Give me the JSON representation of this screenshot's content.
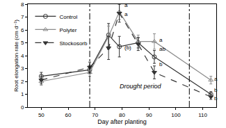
{
  "chart_data": {
    "type": "line",
    "x_label": "Day after planting",
    "y_label": "Root elongation rate (cm d⁻¹)",
    "xlim": [
      45,
      115
    ],
    "xticks": [
      50,
      60,
      70,
      80,
      90,
      100,
      110
    ],
    "ylim": [
      0,
      8
    ],
    "yticks": [
      0,
      1,
      2,
      3,
      4,
      5,
      6,
      7,
      8
    ],
    "grid": false,
    "legend": "upper left",
    "x": [
      50,
      68,
      75,
      79,
      86,
      92,
      113
    ],
    "series": [
      {
        "name": "Control",
        "color": "#333333",
        "marker": "circle-open",
        "line_style": "solid",
        "values": [
          2.4,
          2.9,
          5.6,
          4.7,
          5.0,
          3.9,
          1.0
        ],
        "error": [
          0.3,
          0.3,
          0.9,
          0.8,
          0.4,
          0.5,
          0.2
        ]
      },
      {
        "name": "Polyter",
        "color": "#8c8c8c",
        "marker": "triangle-up-open",
        "line_style": "solid",
        "values": [
          2.0,
          2.7,
          5.5,
          7.4,
          5.1,
          5.1,
          2.1
        ],
        "error": [
          0.3,
          0.3,
          0.8,
          0.6,
          0.5,
          0.6,
          0.3
        ]
      },
      {
        "name": "Stockosorb",
        "color": "#333333",
        "marker": "triangle-down",
        "line_style": "dash",
        "values": [
          2.1,
          3.1,
          4.6,
          7.3,
          4.9,
          2.7,
          0.8
        ],
        "error": [
          0.3,
          0.4,
          0.9,
          0.7,
          0.5,
          0.5,
          0.2
        ]
      }
    ],
    "vlines": [
      68,
      105
    ],
    "annotations": [
      {
        "text": "Drought period",
        "x": 87,
        "y": 1.6
      },
      {
        "text": "a",
        "x": 80.3,
        "y": 7.9
      },
      {
        "text": "a",
        "x": 80.3,
        "y": 7.2
      },
      {
        "text": "(b)",
        "x": 80.3,
        "y": 4.6
      },
      {
        "text": "a",
        "x": 93.3,
        "y": 5.2
      },
      {
        "text": "ab",
        "x": 93.3,
        "y": 4.5
      },
      {
        "text": "b",
        "x": 93.3,
        "y": 3.3
      },
      {
        "text": "a",
        "x": 113.6,
        "y": 2.2
      },
      {
        "text": "b",
        "x": 113.6,
        "y": 1.3
      },
      {
        "text": "b",
        "x": 113.6,
        "y": 0.7
      }
    ]
  }
}
